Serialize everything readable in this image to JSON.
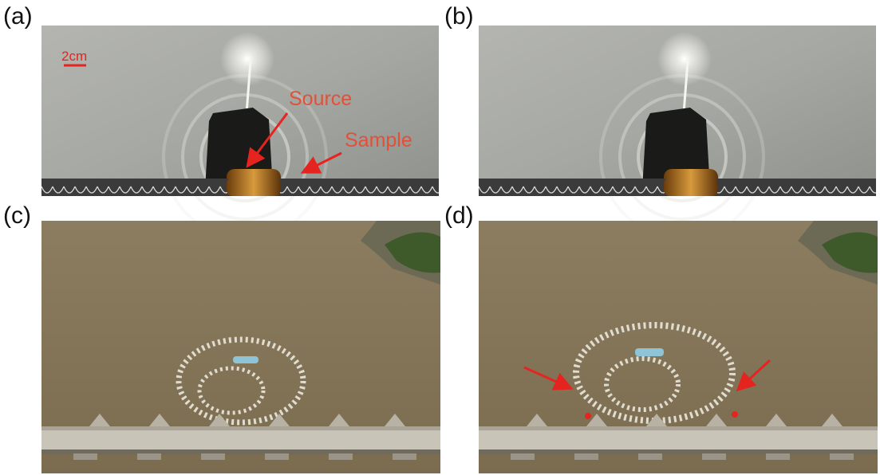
{
  "panels": [
    {
      "label": "(a)"
    },
    {
      "label": "(b)"
    },
    {
      "label": "(c)"
    },
    {
      "label": "(d)"
    }
  ],
  "annotations": {
    "scale": "2cm",
    "source": "Source",
    "sample": "Sample"
  }
}
